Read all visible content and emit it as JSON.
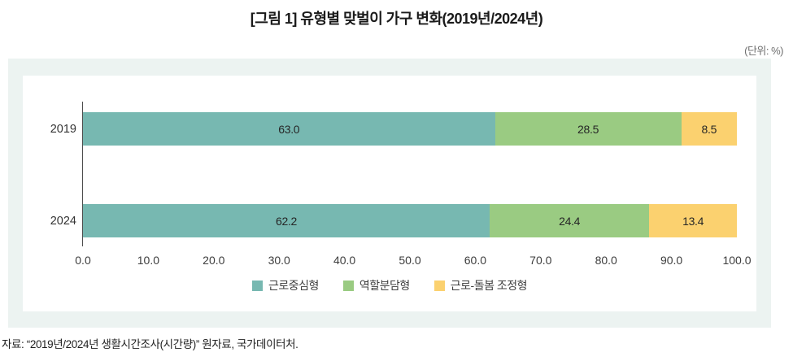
{
  "title": "[그림 1] 유형별 맞벌이 가구 변화(2019년/2024년)",
  "unit_label": "(단위: %)",
  "source": "자료: “2019년/2024년 생활시간조사(시간량)” 원자료, 국가데이터처.",
  "colors": {
    "panel_bg": "#ecf3f1",
    "plot_bg": "#ffffff",
    "axis_line": "#4d4d4d",
    "teal": "#77b8b1",
    "green": "#9acb82",
    "yellow": "#fbd16f"
  },
  "chart_data": {
    "type": "bar",
    "orientation": "horizontal",
    "stacked": true,
    "title": "[그림 1] 유형별 맞벌이 가구 변화(2019년/2024년)",
    "unit": "%",
    "categories": [
      "2019",
      "2024"
    ],
    "series": [
      {
        "name": "근로중심형",
        "color": "#77b8b1",
        "values": [
          63.0,
          62.2
        ]
      },
      {
        "name": "역할분담형",
        "color": "#9acb82",
        "values": [
          28.5,
          24.4
        ]
      },
      {
        "name": "근로-돌봄 조정형",
        "color": "#fbd16f",
        "values": [
          8.5,
          13.4
        ]
      }
    ],
    "xlim": [
      0,
      100
    ],
    "x_ticks": [
      "0.0",
      "10.0",
      "20.0",
      "30.0",
      "40.0",
      "50.0",
      "60.0",
      "70.0",
      "80.0",
      "90.0",
      "100.0"
    ],
    "grid": false,
    "legend_position": "bottom"
  }
}
